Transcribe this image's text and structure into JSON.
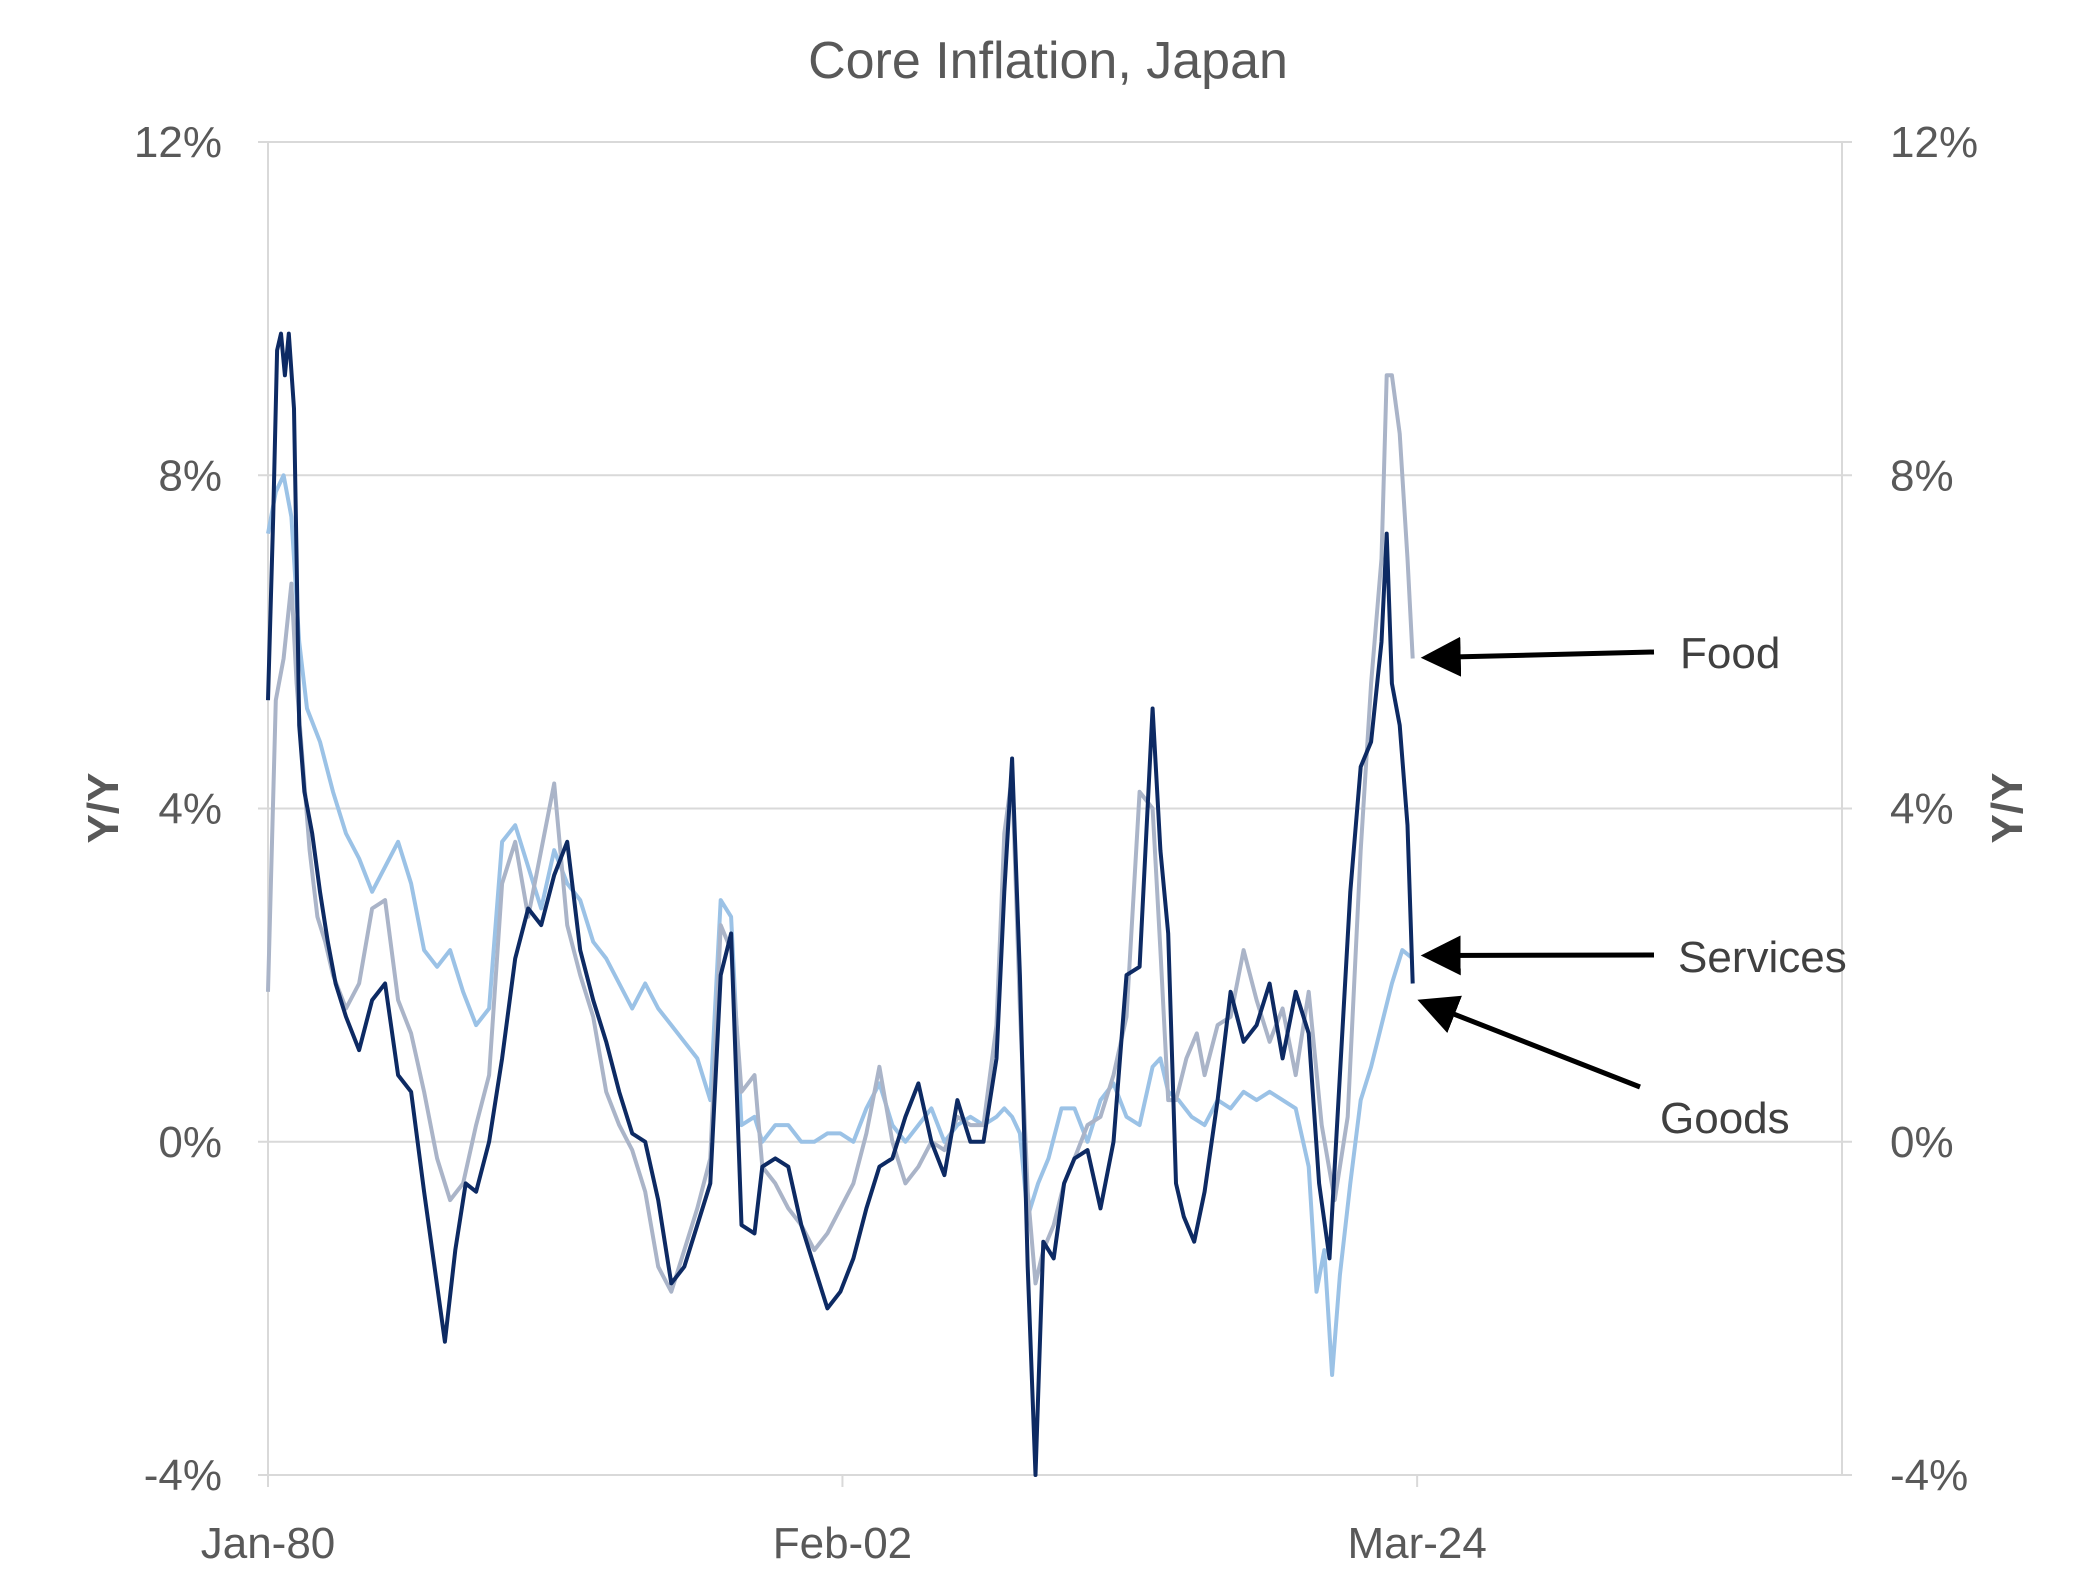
{
  "chart_data": {
    "type": "line",
    "title": "Core Inflation, Japan",
    "ylabel_left": "Y/Y",
    "ylabel_right": "Y/Y",
    "ylim": [
      -4,
      12
    ],
    "yticks": [
      "12%",
      "8%",
      "4%",
      "0%",
      "-4%"
    ],
    "ytick_values": [
      12,
      8,
      4,
      0,
      -4
    ],
    "xlim": [
      1980.0,
      2040.5
    ],
    "xtick_labels": [
      "Jan-80",
      "Feb-02",
      "Mar-24"
    ],
    "xtick_values": [
      1980.0,
      2002.08,
      2024.17
    ],
    "grid": true,
    "legend": "none",
    "annotations": [
      {
        "label": "Food",
        "series": "Food"
      },
      {
        "label": "Services",
        "series": "Services"
      },
      {
        "label": "Goods",
        "series": "Goods"
      }
    ],
    "series": [
      {
        "name": "Goods",
        "color": "#0d2a63",
        "x": [
          1980.0,
          1980.2,
          1980.35,
          1980.5,
          1980.65,
          1980.8,
          1981.0,
          1981.1,
          1981.2,
          1981.4,
          1981.7,
          1982.0,
          1982.3,
          1982.6,
          1983.0,
          1983.5,
          1984.0,
          1984.5,
          1985.0,
          1985.5,
          1986.0,
          1986.4,
          1986.8,
          1987.2,
          1987.6,
          1988.0,
          1988.5,
          1989.0,
          1989.5,
          1990.0,
          1990.5,
          1991.0,
          1991.5,
          1992.0,
          1992.5,
          1993.0,
          1993.5,
          1994.0,
          1994.5,
          1995.0,
          1995.5,
          1996.0,
          1996.5,
          1997.0,
          1997.4,
          1997.8,
          1998.2,
          1998.7,
          1999.0,
          1999.5,
          2000.0,
          2000.5,
          2001.0,
          2001.5,
          2002.0,
          2002.5,
          2003.0,
          2003.5,
          2004.0,
          2004.5,
          2005.0,
          2005.5,
          2006.0,
          2006.5,
          2007.0,
          2007.5,
          2008.0,
          2008.3,
          2008.6,
          2008.9,
          2009.2,
          2009.5,
          2009.8,
          2010.2,
          2010.6,
          2011.0,
          2011.5,
          2012.0,
          2012.5,
          2013.0,
          2013.5,
          2014.0,
          2014.3,
          2014.6,
          2014.9,
          2015.2,
          2015.6,
          2016.0,
          2016.5,
          2017.0,
          2017.5,
          2018.0,
          2018.5,
          2019.0,
          2019.5,
          2020.0,
          2020.4,
          2020.8,
          2021.2,
          2021.6,
          2022.0,
          2022.4,
          2022.8,
          2023.0,
          2023.2,
          2023.5,
          2023.8,
          2024.0
        ],
        "values": [
          5.3,
          7.5,
          9.5,
          9.7,
          9.2,
          9.7,
          8.8,
          7.0,
          5.0,
          4.2,
          3.7,
          3.0,
          2.4,
          1.9,
          1.5,
          1.1,
          1.7,
          1.9,
          0.8,
          0.6,
          -0.6,
          -1.5,
          -2.4,
          -1.3,
          -0.5,
          -0.6,
          0.0,
          1.0,
          2.2,
          2.8,
          2.6,
          3.2,
          3.6,
          2.3,
          1.7,
          1.2,
          0.6,
          0.1,
          0.0,
          -0.7,
          -1.7,
          -1.5,
          -1.0,
          -0.5,
          2.0,
          2.5,
          -1.0,
          -1.1,
          -0.3,
          -0.2,
          -0.3,
          -1.0,
          -1.5,
          -2.0,
          -1.8,
          -1.4,
          -0.8,
          -0.3,
          -0.2,
          0.3,
          0.7,
          0.0,
          -0.4,
          0.5,
          0.0,
          0.0,
          1.0,
          3.0,
          4.6,
          2.0,
          -1.5,
          -4.0,
          -1.2,
          -1.4,
          -0.5,
          -0.2,
          -0.1,
          -0.8,
          0.0,
          2.0,
          2.1,
          5.2,
          3.5,
          2.5,
          -0.5,
          -0.9,
          -1.2,
          -0.6,
          0.5,
          1.8,
          1.2,
          1.4,
          1.9,
          1.0,
          1.8,
          1.3,
          -0.5,
          -1.4,
          0.8,
          3.0,
          4.5,
          4.8,
          6.0,
          7.3,
          5.5,
          5.0,
          3.8,
          1.9
        ]
      },
      {
        "name": "Food",
        "color": "#aab4c8",
        "x": [
          1980.0,
          1980.3,
          1980.6,
          1980.9,
          1981.1,
          1981.3,
          1981.6,
          1981.9,
          1982.2,
          1982.5,
          1983.0,
          1983.5,
          1984.0,
          1984.5,
          1985.0,
          1985.5,
          1986.0,
          1986.5,
          1987.0,
          1987.5,
          1988.0,
          1988.5,
          1989.0,
          1989.5,
          1990.0,
          1990.5,
          1991.0,
          1991.5,
          1992.0,
          1992.5,
          1993.0,
          1993.5,
          1994.0,
          1994.5,
          1995.0,
          1995.5,
          1996.0,
          1996.5,
          1997.0,
          1997.4,
          1997.8,
          1998.2,
          1998.7,
          1999.0,
          1999.5,
          2000.0,
          2000.5,
          2001.0,
          2001.5,
          2002.0,
          2002.5,
          2003.0,
          2003.5,
          2004.0,
          2004.5,
          2005.0,
          2005.5,
          2006.0,
          2006.5,
          2007.0,
          2007.5,
          2008.0,
          2008.3,
          2008.6,
          2008.9,
          2009.2,
          2009.5,
          2009.8,
          2010.2,
          2010.6,
          2011.0,
          2011.5,
          2012.0,
          2012.5,
          2013.0,
          2013.5,
          2014.0,
          2014.3,
          2014.6,
          2014.9,
          2015.3,
          2015.7,
          2016.0,
          2016.5,
          2017.0,
          2017.5,
          2018.0,
          2018.5,
          2019.0,
          2019.5,
          2020.0,
          2020.5,
          2021.0,
          2021.5,
          2022.0,
          2022.4,
          2022.8,
          2023.0,
          2023.2,
          2023.5,
          2023.8,
          2024.0
        ],
        "values": [
          1.8,
          5.3,
          5.8,
          6.7,
          5.5,
          4.7,
          3.5,
          2.7,
          2.4,
          2.0,
          1.6,
          1.9,
          2.8,
          2.9,
          1.7,
          1.3,
          0.6,
          -0.2,
          -0.7,
          -0.5,
          0.2,
          0.8,
          3.1,
          3.6,
          2.7,
          3.5,
          4.3,
          2.6,
          2.0,
          1.5,
          0.6,
          0.2,
          -0.1,
          -0.6,
          -1.5,
          -1.8,
          -1.3,
          -0.8,
          -0.2,
          2.6,
          2.3,
          0.6,
          0.8,
          -0.3,
          -0.5,
          -0.8,
          -1.0,
          -1.3,
          -1.1,
          -0.8,
          -0.5,
          0.1,
          0.9,
          0.0,
          -0.5,
          -0.3,
          0.0,
          -0.1,
          0.3,
          0.2,
          0.2,
          1.4,
          3.7,
          4.4,
          1.6,
          -0.6,
          -1.7,
          -1.3,
          -1.0,
          -0.5,
          -0.2,
          0.2,
          0.3,
          0.8,
          1.5,
          4.2,
          4.0,
          2.3,
          0.5,
          0.5,
          1.0,
          1.3,
          0.8,
          1.4,
          1.5,
          2.3,
          1.7,
          1.2,
          1.6,
          0.8,
          1.8,
          0.2,
          -0.7,
          0.3,
          3.5,
          5.5,
          7.0,
          9.2,
          9.2,
          8.5,
          7.0,
          5.8
        ]
      },
      {
        "name": "Services",
        "color": "#9bc2e6",
        "x": [
          1980.0,
          1980.3,
          1980.6,
          1980.9,
          1981.2,
          1981.5,
          1982.0,
          1982.5,
          1983.0,
          1983.5,
          1984.0,
          1984.5,
          1985.0,
          1985.5,
          1986.0,
          1986.5,
          1987.0,
          1987.5,
          1988.0,
          1988.5,
          1989.0,
          1989.5,
          1990.0,
          1990.5,
          1991.0,
          1991.5,
          1992.0,
          1992.5,
          1993.0,
          1993.5,
          1994.0,
          1994.5,
          1995.0,
          1995.5,
          1996.0,
          1996.5,
          1997.0,
          1997.4,
          1997.8,
          1998.2,
          1998.7,
          1999.0,
          1999.5,
          2000.0,
          2000.5,
          2001.0,
          2001.5,
          2002.0,
          2002.5,
          2003.0,
          2003.5,
          2004.0,
          2004.5,
          2005.0,
          2005.5,
          2006.0,
          2006.5,
          2007.0,
          2007.5,
          2008.0,
          2008.3,
          2008.6,
          2008.9,
          2009.2,
          2009.6,
          2010.0,
          2010.5,
          2011.0,
          2011.5,
          2012.0,
          2012.5,
          2013.0,
          2013.5,
          2014.0,
          2014.3,
          2014.6,
          2015.0,
          2015.5,
          2016.0,
          2016.5,
          2017.0,
          2017.5,
          2018.0,
          2018.5,
          2019.0,
          2019.5,
          2020.0,
          2020.3,
          2020.6,
          2020.9,
          2021.2,
          2021.6,
          2022.0,
          2022.4,
          2022.8,
          2023.2,
          2023.6,
          2024.0
        ],
        "values": [
          7.3,
          7.8,
          8.0,
          7.5,
          6.0,
          5.2,
          4.8,
          4.2,
          3.7,
          3.4,
          3.0,
          3.3,
          3.6,
          3.1,
          2.3,
          2.1,
          2.3,
          1.8,
          1.4,
          1.6,
          3.6,
          3.8,
          3.3,
          2.8,
          3.5,
          3.1,
          2.9,
          2.4,
          2.2,
          1.9,
          1.6,
          1.9,
          1.6,
          1.4,
          1.2,
          1.0,
          0.5,
          2.9,
          2.7,
          0.2,
          0.3,
          0.0,
          0.2,
          0.2,
          0.0,
          0.0,
          0.1,
          0.1,
          0.0,
          0.4,
          0.7,
          0.2,
          0.0,
          0.2,
          0.4,
          0.0,
          0.2,
          0.3,
          0.2,
          0.3,
          0.4,
          0.3,
          0.1,
          -0.9,
          -0.5,
          -0.2,
          0.4,
          0.4,
          0.0,
          0.5,
          0.7,
          0.3,
          0.2,
          0.9,
          1.0,
          0.6,
          0.5,
          0.3,
          0.2,
          0.5,
          0.4,
          0.6,
          0.5,
          0.6,
          0.5,
          0.4,
          -0.3,
          -1.8,
          -1.3,
          -2.8,
          -1.6,
          -0.5,
          0.5,
          0.9,
          1.4,
          1.9,
          2.3,
          2.2
        ]
      }
    ]
  }
}
